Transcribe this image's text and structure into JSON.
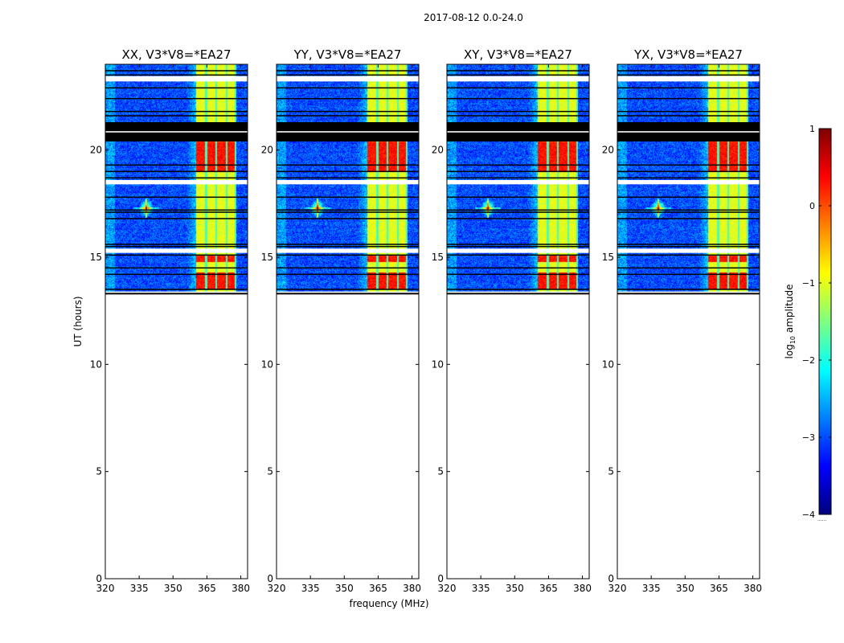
{
  "figure": {
    "suptitle": "2017-08-12 0.0-24.0",
    "xlabel": "frequency (MHz)",
    "ylabel": "UT (hours)"
  },
  "colorbar": {
    "label_prefix": "log",
    "label_sub": "10",
    "label_suffix": " amplitude",
    "range": [
      -4,
      1
    ],
    "ticks": [
      "1",
      "0",
      "−1",
      "−2",
      "−3",
      "−4"
    ],
    "tick_values": [
      1,
      0,
      -1,
      -2,
      -3,
      -4
    ],
    "colormap": "jet",
    "colors": [
      "#00007f",
      "#0000ff",
      "#007fff",
      "#00ffff",
      "#7fff7f",
      "#ffff00",
      "#ff7f00",
      "#ff0000",
      "#7f0000"
    ],
    "bottom_note": "......"
  },
  "chart_data": {
    "type": "heatmap",
    "panels": [
      {
        "title": "XX, V3*V8=*EA27"
      },
      {
        "title": "YY, V3*V8=*EA27"
      },
      {
        "title": "XY, V3*V8=*EA27"
      },
      {
        "title": "YX, V3*V8=*EA27"
      }
    ],
    "xlim": [
      320,
      383
    ],
    "ylim": [
      0,
      24
    ],
    "xticks": [
      320,
      335,
      350,
      365,
      380
    ],
    "yticks": [
      0,
      5,
      10,
      15,
      20
    ],
    "data_time_range_hours": [
      13.3,
      24.0
    ],
    "no_data_range_hours": [
      0,
      13.3
    ],
    "flagged_blocks_hours": [
      [
        20.4,
        21.3
      ],
      [
        20.6,
        21.0
      ]
    ],
    "flagged_lines_hours": [
      13.5,
      14.2,
      14.5,
      15.1,
      15.5,
      15.6,
      16.8,
      17.1,
      17.2,
      17.8,
      18.5,
      18.7,
      19.0,
      19.3,
      21.6,
      21.8,
      22.4,
      22.9,
      23.3,
      23.5,
      23.7
    ],
    "white_gap_hours": [
      [
        13.3,
        13.4
      ],
      [
        15.2,
        15.4
      ],
      [
        18.4,
        18.6
      ],
      [
        23.2,
        23.45
      ]
    ],
    "rfi_band_mhz": [
      360,
      378
    ],
    "rfi_columns_mhz": [
      364.5,
      369,
      373.5,
      377.5
    ],
    "rfi_strong_time_hours": [
      [
        19.0,
        20.4
      ],
      [
        14.8,
        15.1
      ],
      [
        13.5,
        14.3
      ]
    ],
    "source_spot": {
      "freq_mhz": 338,
      "ut_hours": 17.3
    },
    "background_log_amplitude": -3,
    "rfi_band_log_amplitude": -1,
    "rfi_peak_log_amplitude": 0.3
  }
}
